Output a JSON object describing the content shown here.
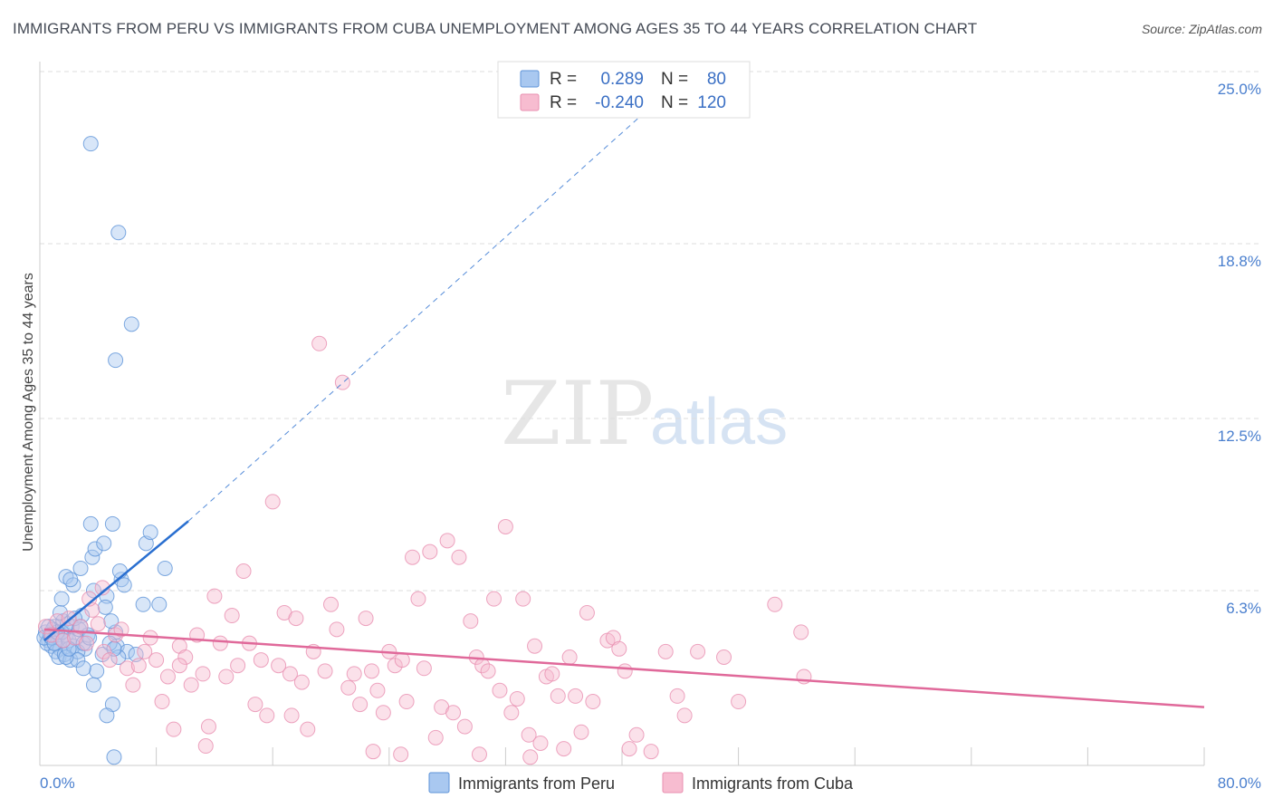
{
  "title": "IMMIGRANTS FROM PERU VS IMMIGRANTS FROM CUBA UNEMPLOYMENT AMONG AGES 35 TO 44 YEARS CORRELATION CHART",
  "source": "Source: ZipAtlas.com",
  "watermark": {
    "zip": "ZIP",
    "atlas": "atlas"
  },
  "colors": {
    "peru_fill": "#a9c8f0",
    "peru_stroke": "#5e93d8",
    "peru_line": "#2a6fd0",
    "cuba_fill": "#f7bcd0",
    "cuba_stroke": "#e98fb0",
    "cuba_line": "#e0699a",
    "grid": "#dddddd",
    "tick_text": "#4a7fce"
  },
  "legend": {
    "rows": [
      {
        "r_label": "R =",
        "r_value": "0.289",
        "n_label": "N =",
        "n_value": "80"
      },
      {
        "r_label": "R =",
        "r_value": "-0.240",
        "n_label": "N =",
        "n_value": "120"
      }
    ]
  },
  "chart_data": {
    "type": "scatter",
    "title": "IMMIGRANTS FROM PERU VS IMMIGRANTS FROM CUBA UNEMPLOYMENT AMONG AGES 35 TO 44 YEARS CORRELATION CHART",
    "xlabel": "",
    "ylabel": "Unemployment Among Ages 35 to 44 years",
    "xlim": [
      0,
      80
    ],
    "ylim": [
      0,
      25
    ],
    "x_tick_labels": [
      "0.0%",
      "80.0%"
    ],
    "y_ticks": [
      6.3,
      12.5,
      18.8,
      25.0
    ],
    "y_tick_labels": [
      "6.3%",
      "12.5%",
      "18.8%",
      "25.0%"
    ],
    "legend_position": "bottom",
    "series": [
      {
        "name": "Immigrants from Peru",
        "r": 0.289,
        "n": 80,
        "trend": {
          "x": [
            0.3,
            10.2
          ],
          "y": [
            4.5,
            8.8
          ],
          "dashed_to": [
            41.5,
            23.5
          ]
        },
        "points": [
          [
            0.4,
            4.8
          ],
          [
            0.6,
            4.5
          ],
          [
            0.8,
            4.3
          ],
          [
            1.0,
            5.0
          ],
          [
            1.2,
            4.6
          ],
          [
            0.5,
            4.4
          ],
          [
            0.9,
            4.9
          ],
          [
            1.4,
            4.2
          ],
          [
            1.6,
            5.2
          ],
          [
            1.8,
            4.7
          ],
          [
            2.0,
            4.5
          ],
          [
            2.2,
            5.0
          ],
          [
            1.1,
            4.1
          ],
          [
            1.3,
            3.9
          ],
          [
            0.7,
            4.7
          ],
          [
            0.3,
            4.6
          ],
          [
            1.5,
            4.8
          ],
          [
            1.7,
            4.0
          ],
          [
            1.9,
            5.1
          ],
          [
            2.3,
            4.3
          ],
          [
            2.5,
            4.6
          ],
          [
            2.7,
            4.9
          ],
          [
            2.9,
            5.4
          ],
          [
            3.1,
            4.2
          ],
          [
            3.3,
            4.7
          ],
          [
            2.1,
            3.8
          ],
          [
            2.4,
            5.3
          ],
          [
            2.6,
            4.1
          ],
          [
            2.8,
            5.0
          ],
          [
            3.0,
            4.4
          ],
          [
            1.4,
            5.5
          ],
          [
            1.5,
            6.0
          ],
          [
            1.8,
            6.8
          ],
          [
            2.3,
            6.5
          ],
          [
            2.1,
            6.7
          ],
          [
            2.8,
            7.1
          ],
          [
            3.7,
            6.3
          ],
          [
            3.6,
            7.5
          ],
          [
            3.8,
            7.8
          ],
          [
            4.4,
            8.0
          ],
          [
            3.5,
            8.7
          ],
          [
            5.0,
            8.7
          ],
          [
            5.6,
            6.7
          ],
          [
            5.8,
            6.5
          ],
          [
            5.5,
            7.0
          ],
          [
            4.6,
            6.1
          ],
          [
            4.5,
            5.7
          ],
          [
            5.2,
            4.8
          ],
          [
            4.9,
            5.2
          ],
          [
            5.3,
            4.3
          ],
          [
            6.0,
            4.1
          ],
          [
            6.6,
            4.0
          ],
          [
            7.1,
            5.8
          ],
          [
            8.2,
            5.8
          ],
          [
            8.6,
            7.1
          ],
          [
            7.3,
            8.0
          ],
          [
            7.6,
            8.4
          ],
          [
            4.3,
            4.0
          ],
          [
            5.4,
            3.9
          ],
          [
            3.9,
            3.4
          ],
          [
            2.6,
            3.8
          ],
          [
            3.0,
            3.5
          ],
          [
            1.8,
            3.9
          ],
          [
            4.8,
            4.4
          ],
          [
            5.1,
            4.2
          ],
          [
            3.7,
            2.9
          ],
          [
            5.0,
            2.2
          ],
          [
            4.6,
            1.8
          ],
          [
            5.1,
            0.3
          ],
          [
            3.5,
            22.4
          ],
          [
            5.4,
            19.2
          ],
          [
            6.3,
            15.9
          ],
          [
            5.2,
            14.6
          ],
          [
            0.8,
            4.6
          ],
          [
            1.0,
            4.4
          ],
          [
            1.2,
            4.8
          ],
          [
            2.0,
            4.2
          ],
          [
            3.4,
            4.6
          ],
          [
            0.6,
            5.0
          ],
          [
            1.6,
            4.5
          ]
        ]
      },
      {
        "name": "Immigrants from Cuba",
        "r": -0.24,
        "n": 120,
        "trend": {
          "x": [
            0.3,
            80
          ],
          "y": [
            4.9,
            2.1
          ]
        },
        "points": [
          [
            0.4,
            5.0
          ],
          [
            0.8,
            4.7
          ],
          [
            1.2,
            5.2
          ],
          [
            1.6,
            4.5
          ],
          [
            2.0,
            5.3
          ],
          [
            2.4,
            4.6
          ],
          [
            2.8,
            5.0
          ],
          [
            3.2,
            4.4
          ],
          [
            3.6,
            5.6
          ],
          [
            4.0,
            5.1
          ],
          [
            4.4,
            4.1
          ],
          [
            4.8,
            3.8
          ],
          [
            5.2,
            4.7
          ],
          [
            5.6,
            4.9
          ],
          [
            6.0,
            3.5
          ],
          [
            6.4,
            2.9
          ],
          [
            6.8,
            3.6
          ],
          [
            7.2,
            4.1
          ],
          [
            7.6,
            4.6
          ],
          [
            8.0,
            3.8
          ],
          [
            8.4,
            2.3
          ],
          [
            8.8,
            3.2
          ],
          [
            9.2,
            1.3
          ],
          [
            9.6,
            4.3
          ],
          [
            10.0,
            3.9
          ],
          [
            10.4,
            2.9
          ],
          [
            10.8,
            4.7
          ],
          [
            11.2,
            3.3
          ],
          [
            11.6,
            1.4
          ],
          [
            12.0,
            6.1
          ],
          [
            12.4,
            4.4
          ],
          [
            12.8,
            3.2
          ],
          [
            13.2,
            5.4
          ],
          [
            13.6,
            3.6
          ],
          [
            14.0,
            7.0
          ],
          [
            14.4,
            4.4
          ],
          [
            14.8,
            2.2
          ],
          [
            15.2,
            3.8
          ],
          [
            15.6,
            1.8
          ],
          [
            16.0,
            9.5
          ],
          [
            16.4,
            3.6
          ],
          [
            16.8,
            5.5
          ],
          [
            17.2,
            3.3
          ],
          [
            17.6,
            5.3
          ],
          [
            18.0,
            3.0
          ],
          [
            18.4,
            1.3
          ],
          [
            18.8,
            4.1
          ],
          [
            19.2,
            15.2
          ],
          [
            19.6,
            3.4
          ],
          [
            20.0,
            5.8
          ],
          [
            20.4,
            4.9
          ],
          [
            20.8,
            13.8
          ],
          [
            21.2,
            2.8
          ],
          [
            21.6,
            3.3
          ],
          [
            22.0,
            2.2
          ],
          [
            22.4,
            5.3
          ],
          [
            22.8,
            3.4
          ],
          [
            23.2,
            2.7
          ],
          [
            23.6,
            1.9
          ],
          [
            24.0,
            4.1
          ],
          [
            24.4,
            3.6
          ],
          [
            24.8,
            0.4
          ],
          [
            25.2,
            2.3
          ],
          [
            25.6,
            7.5
          ],
          [
            26.0,
            6.0
          ],
          [
            26.4,
            3.5
          ],
          [
            26.8,
            7.7
          ],
          [
            27.2,
            1.0
          ],
          [
            27.6,
            2.1
          ],
          [
            28.0,
            8.1
          ],
          [
            28.4,
            1.9
          ],
          [
            28.8,
            7.5
          ],
          [
            29.2,
            1.4
          ],
          [
            29.6,
            5.2
          ],
          [
            30.0,
            3.9
          ],
          [
            30.4,
            3.6
          ],
          [
            30.8,
            3.4
          ],
          [
            31.2,
            6.0
          ],
          [
            31.6,
            2.7
          ],
          [
            32.0,
            8.6
          ],
          [
            32.4,
            1.9
          ],
          [
            32.8,
            2.4
          ],
          [
            33.2,
            6.0
          ],
          [
            33.6,
            1.1
          ],
          [
            34.0,
            4.3
          ],
          [
            34.4,
            0.8
          ],
          [
            34.8,
            3.2
          ],
          [
            35.2,
            3.3
          ],
          [
            35.6,
            2.5
          ],
          [
            36.0,
            0.6
          ],
          [
            36.4,
            3.9
          ],
          [
            36.8,
            2.5
          ],
          [
            37.2,
            1.2
          ],
          [
            37.6,
            5.5
          ],
          [
            38.0,
            2.3
          ],
          [
            39.0,
            4.5
          ],
          [
            39.4,
            4.6
          ],
          [
            39.8,
            4.2
          ],
          [
            40.2,
            3.4
          ],
          [
            41.0,
            1.1
          ],
          [
            40.5,
            0.6
          ],
          [
            42.0,
            0.5
          ],
          [
            43.0,
            4.1
          ],
          [
            43.8,
            2.5
          ],
          [
            44.3,
            1.8
          ],
          [
            45.2,
            4.1
          ],
          [
            47.0,
            3.9
          ],
          [
            48.0,
            2.3
          ],
          [
            50.5,
            5.8
          ],
          [
            52.5,
            3.2
          ],
          [
            52.3,
            4.8
          ],
          [
            24.9,
            3.8
          ],
          [
            30.2,
            0.4
          ],
          [
            33.7,
            0.3
          ],
          [
            17.3,
            1.8
          ],
          [
            22.9,
            0.5
          ],
          [
            9.6,
            3.6
          ],
          [
            11.4,
            0.7
          ],
          [
            4.3,
            6.4
          ],
          [
            3.4,
            6.0
          ]
        ]
      }
    ]
  },
  "bottom_legend": {
    "peru": "Immigrants from Peru",
    "cuba": "Immigrants from Cuba"
  }
}
